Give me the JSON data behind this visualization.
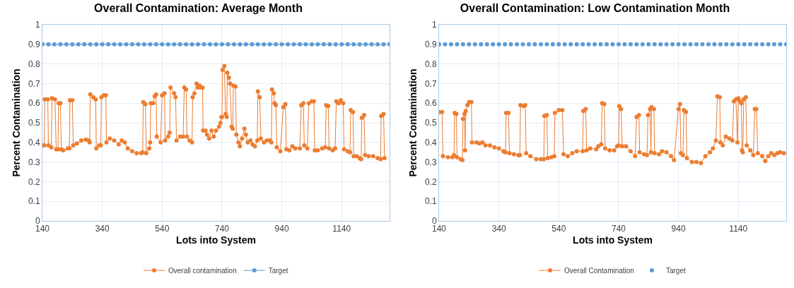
{
  "chart_data": [
    {
      "type": "line",
      "title": "Overall Contamination: Average Month",
      "xlabel": "Lots into System",
      "ylabel": "Percent Contamination",
      "xlim": [
        140,
        1300
      ],
      "xticks": [
        140,
        340,
        540,
        740,
        940,
        1140
      ],
      "ylim": [
        0,
        1
      ],
      "yticks": [
        0,
        0.1,
        0.2,
        0.3,
        0.4,
        0.5,
        0.6,
        0.7,
        0.8,
        0.9,
        1
      ],
      "grid": true,
      "legend": "bottom",
      "marker": "circle",
      "series": [
        {
          "name": "Overall contamination",
          "color": "#ed7d31",
          "line_style": "solid",
          "x": [
            140,
            146,
            148,
            158,
            160,
            170,
            172,
            182,
            186,
            192,
            194,
            200,
            203,
            210,
            225,
            230,
            232,
            240,
            243,
            255,
            270,
            285,
            295,
            298,
            300,
            310,
            318,
            320,
            330,
            335,
            337,
            345,
            352,
            354,
            365,
            380,
            395,
            405,
            415,
            425,
            440,
            455,
            470,
            475,
            477,
            484,
            487,
            497,
            500,
            502,
            510,
            515,
            520,
            522,
            535,
            540,
            548,
            550,
            560,
            565,
            568,
            580,
            585,
            588,
            600,
            610,
            614,
            620,
            623,
            632,
            640,
            642,
            648,
            655,
            660,
            665,
            670,
            675,
            677,
            685,
            690,
            697,
            705,
            712,
            720,
            730,
            735,
            738,
            740,
            742,
            748,
            752,
            756,
            758,
            763,
            767,
            772,
            776,
            778,
            785,
            788,
            795,
            800,
            807,
            815,
            820,
            826,
            835,
            842,
            850,
            858,
            860,
            866,
            870,
            880,
            890,
            900,
            905,
            907,
            913,
            916,
            920,
            923,
            935,
            945,
            952,
            955,
            965,
            975,
            985,
            1000,
            1005,
            1012,
            1015,
            1025,
            1030,
            1040,
            1047,
            1050,
            1060,
            1075,
            1085,
            1088,
            1095,
            1098,
            1110,
            1118,
            1122,
            1130,
            1137,
            1145,
            1148,
            1160,
            1168,
            1170,
            1178,
            1180,
            1190,
            1200,
            1205,
            1207,
            1215,
            1218,
            1230,
            1245,
            1260,
            1270,
            1272,
            1280,
            1283
          ],
          "values": [
            0.385,
            0.385,
            0.62,
            0.62,
            0.385,
            0.375,
            0.625,
            0.62,
            0.365,
            0.365,
            0.6,
            0.6,
            0.365,
            0.36,
            0.37,
            0.37,
            0.615,
            0.615,
            0.385,
            0.395,
            0.41,
            0.415,
            0.41,
            0.4,
            0.645,
            0.63,
            0.62,
            0.37,
            0.385,
            0.385,
            0.63,
            0.64,
            0.64,
            0.4,
            0.42,
            0.41,
            0.39,
            0.41,
            0.4,
            0.37,
            0.355,
            0.345,
            0.345,
            0.35,
            0.605,
            0.595,
            0.345,
            0.37,
            0.4,
            0.6,
            0.6,
            0.635,
            0.645,
            0.43,
            0.4,
            0.64,
            0.65,
            0.41,
            0.43,
            0.45,
            0.68,
            0.65,
            0.63,
            0.41,
            0.43,
            0.43,
            0.68,
            0.67,
            0.43,
            0.41,
            0.4,
            0.63,
            0.65,
            0.7,
            0.68,
            0.69,
            0.68,
            0.68,
            0.46,
            0.46,
            0.44,
            0.42,
            0.46,
            0.43,
            0.46,
            0.48,
            0.5,
            0.53,
            0.53,
            0.77,
            0.79,
            0.545,
            0.53,
            0.755,
            0.73,
            0.7,
            0.48,
            0.47,
            0.69,
            0.685,
            0.44,
            0.4,
            0.38,
            0.42,
            0.47,
            0.44,
            0.4,
            0.41,
            0.39,
            0.38,
            0.41,
            0.66,
            0.63,
            0.42,
            0.4,
            0.41,
            0.41,
            0.4,
            0.67,
            0.65,
            0.6,
            0.59,
            0.375,
            0.355,
            0.58,
            0.595,
            0.365,
            0.36,
            0.38,
            0.37,
            0.37,
            0.59,
            0.6,
            0.385,
            0.37,
            0.6,
            0.61,
            0.61,
            0.36,
            0.36,
            0.37,
            0.375,
            0.59,
            0.585,
            0.37,
            0.36,
            0.37,
            0.61,
            0.6,
            0.615,
            0.6,
            0.365,
            0.355,
            0.35,
            0.565,
            0.555,
            0.33,
            0.33,
            0.32,
            0.315,
            0.525,
            0.54,
            0.335,
            0.33,
            0.33,
            0.32,
            0.315,
            0.535,
            0.545,
            0.32
          ]
        },
        {
          "name": "Target",
          "color": "#5b9bd5",
          "line_style": "solid",
          "x": [
            140,
            160,
            180,
            200,
            220,
            240,
            260,
            280,
            300,
            320,
            340,
            360,
            380,
            400,
            420,
            440,
            460,
            480,
            500,
            520,
            540,
            560,
            580,
            600,
            620,
            640,
            660,
            680,
            700,
            720,
            740,
            760,
            780,
            800,
            820,
            840,
            860,
            880,
            900,
            920,
            940,
            960,
            980,
            1000,
            1020,
            1040,
            1060,
            1080,
            1100,
            1120,
            1140,
            1160,
            1180,
            1200,
            1220,
            1240,
            1260,
            1280,
            1300
          ],
          "values": [
            0.9,
            0.9,
            0.9,
            0.9,
            0.9,
            0.9,
            0.9,
            0.9,
            0.9,
            0.9,
            0.9,
            0.9,
            0.9,
            0.9,
            0.9,
            0.9,
            0.9,
            0.9,
            0.9,
            0.9,
            0.9,
            0.9,
            0.9,
            0.9,
            0.9,
            0.9,
            0.9,
            0.9,
            0.9,
            0.9,
            0.9,
            0.9,
            0.9,
            0.9,
            0.9,
            0.9,
            0.9,
            0.9,
            0.9,
            0.9,
            0.9,
            0.9,
            0.9,
            0.9,
            0.9,
            0.9,
            0.9,
            0.9,
            0.9,
            0.9,
            0.9,
            0.9,
            0.9,
            0.9,
            0.9,
            0.9,
            0.9,
            0.9,
            0.9
          ]
        }
      ]
    },
    {
      "type": "line",
      "title": "Overall Contamination: Low Contamination Month",
      "xlabel": "Lots into System",
      "ylabel": "Percent Contamination",
      "xlim": [
        140,
        1300
      ],
      "xticks": [
        140,
        340,
        540,
        740,
        940,
        1140
      ],
      "ylim": [
        0,
        1
      ],
      "yticks": [
        0,
        0.1,
        0.2,
        0.3,
        0.4,
        0.5,
        0.6,
        0.7,
        0.8,
        0.9,
        1
      ],
      "grid": true,
      "legend": "bottom",
      "marker": "circle",
      "series": [
        {
          "name": "Overall Contamination",
          "color": "#ed7d31",
          "line_style": "solid",
          "x": [
            140,
            150,
            153,
            170,
            185,
            190,
            192,
            198,
            200,
            212,
            218,
            220,
            225,
            227,
            229,
            235,
            240,
            248,
            250,
            265,
            275,
            285,
            295,
            310,
            325,
            340,
            355,
            362,
            364,
            372,
            375,
            390,
            405,
            410,
            412,
            422,
            428,
            431,
            445,
            465,
            480,
            490,
            492,
            500,
            503,
            515,
            525,
            527,
            540,
            552,
            556,
            570,
            585,
            600,
            620,
            622,
            630,
            633,
            645,
            665,
            672,
            682,
            685,
            692,
            695,
            710,
            725,
            735,
            740,
            742,
            748,
            752,
            765,
            780,
            795,
            800,
            808,
            810,
            825,
            835,
            838,
            845,
            848,
            850,
            858,
            860,
            875,
            885,
            900,
            915,
            925,
            940,
            945,
            948,
            955,
            958,
            965,
            968,
            985,
            1000,
            1015,
            1030,
            1045,
            1055,
            1065,
            1070,
            1078,
            1080,
            1088,
            1098,
            1110,
            1120,
            1125,
            1132,
            1137,
            1140,
            1145,
            1150,
            1152,
            1155,
            1158,
            1165,
            1168,
            1180,
            1190,
            1195,
            1200,
            1205,
            1220,
            1230,
            1240,
            1250,
            1260,
            1270,
            1280,
            1292
          ],
          "values": [
            0.555,
            0.555,
            0.33,
            0.325,
            0.325,
            0.335,
            0.55,
            0.545,
            0.325,
            0.315,
            0.31,
            0.52,
            0.545,
            0.36,
            0.56,
            0.59,
            0.605,
            0.605,
            0.4,
            0.4,
            0.395,
            0.4,
            0.385,
            0.385,
            0.375,
            0.37,
            0.355,
            0.35,
            0.55,
            0.55,
            0.345,
            0.34,
            0.335,
            0.335,
            0.59,
            0.585,
            0.59,
            0.345,
            0.33,
            0.315,
            0.315,
            0.315,
            0.535,
            0.54,
            0.32,
            0.325,
            0.33,
            0.55,
            0.565,
            0.565,
            0.34,
            0.33,
            0.345,
            0.355,
            0.355,
            0.56,
            0.57,
            0.36,
            0.37,
            0.365,
            0.38,
            0.39,
            0.6,
            0.595,
            0.37,
            0.36,
            0.36,
            0.38,
            0.385,
            0.585,
            0.57,
            0.38,
            0.38,
            0.355,
            0.33,
            0.53,
            0.54,
            0.35,
            0.34,
            0.335,
            0.54,
            0.57,
            0.35,
            0.58,
            0.57,
            0.345,
            0.34,
            0.355,
            0.35,
            0.33,
            0.31,
            0.57,
            0.595,
            0.345,
            0.335,
            0.565,
            0.555,
            0.32,
            0.3,
            0.3,
            0.295,
            0.33,
            0.35,
            0.37,
            0.41,
            0.635,
            0.63,
            0.4,
            0.385,
            0.43,
            0.42,
            0.41,
            0.61,
            0.62,
            0.4,
            0.625,
            0.61,
            0.6,
            0.36,
            0.35,
            0.62,
            0.63,
            0.385,
            0.36,
            0.335,
            0.57,
            0.57,
            0.345,
            0.33,
            0.305,
            0.33,
            0.345,
            0.335,
            0.345,
            0.35,
            0.345
          ]
        },
        {
          "name": "Target",
          "type": "scatter",
          "color": "#5b9bd5",
          "line_style": "none",
          "x": [
            140,
            160,
            180,
            200,
            220,
            240,
            260,
            280,
            300,
            320,
            340,
            360,
            380,
            400,
            420,
            440,
            460,
            480,
            500,
            520,
            540,
            560,
            580,
            600,
            620,
            640,
            660,
            680,
            700,
            720,
            740,
            760,
            780,
            800,
            820,
            840,
            860,
            880,
            900,
            920,
            940,
            960,
            980,
            1000,
            1020,
            1040,
            1060,
            1080,
            1100,
            1120,
            1140,
            1160,
            1180,
            1200,
            1220,
            1240,
            1260,
            1280,
            1300
          ],
          "values": [
            0.9,
            0.9,
            0.9,
            0.9,
            0.9,
            0.9,
            0.9,
            0.9,
            0.9,
            0.9,
            0.9,
            0.9,
            0.9,
            0.9,
            0.9,
            0.9,
            0.9,
            0.9,
            0.9,
            0.9,
            0.9,
            0.9,
            0.9,
            0.9,
            0.9,
            0.9,
            0.9,
            0.9,
            0.9,
            0.9,
            0.9,
            0.9,
            0.9,
            0.9,
            0.9,
            0.9,
            0.9,
            0.9,
            0.9,
            0.9,
            0.9,
            0.9,
            0.9,
            0.9,
            0.9,
            0.9,
            0.9,
            0.9,
            0.9,
            0.9,
            0.9,
            0.9,
            0.9,
            0.9,
            0.9,
            0.9,
            0.9,
            0.9,
            0.9
          ]
        }
      ]
    }
  ]
}
